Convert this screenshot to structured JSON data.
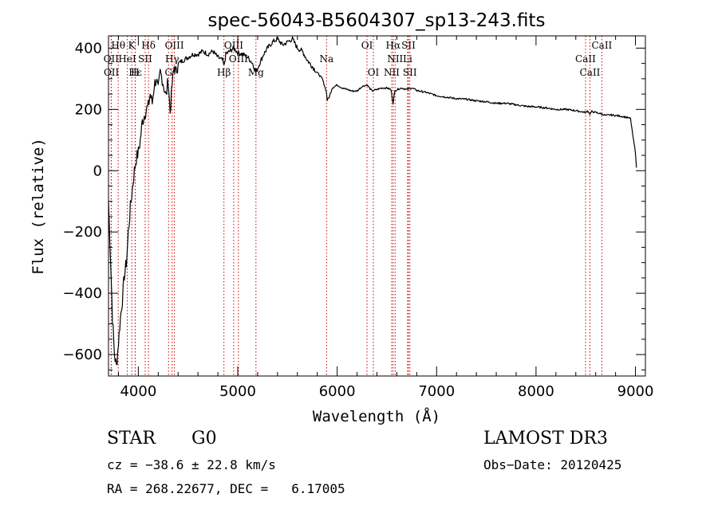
{
  "chart_data": {
    "type": "line",
    "title": "spec-56043-B5604307_sp13-243.fits",
    "xlabel": "Wavelength (Å)",
    "ylabel": "Flux (relative)",
    "xlim": [
      3700,
      9100
    ],
    "ylim": [
      -670,
      440
    ],
    "xticks": [
      4000,
      5000,
      6000,
      7000,
      8000,
      9000
    ],
    "yticks": [
      -600,
      -400,
      -200,
      0,
      200,
      400
    ],
    "series": [
      {
        "name": "spectrum",
        "x": [
          3700,
          3720,
          3740,
          3760,
          3780,
          3800,
          3820,
          3840,
          3860,
          3880,
          3900,
          3920,
          3940,
          3960,
          3980,
          4000,
          4020,
          4040,
          4060,
          4080,
          4100,
          4120,
          4140,
          4160,
          4180,
          4200,
          4220,
          4240,
          4260,
          4280,
          4300,
          4320,
          4340,
          4360,
          4380,
          4400,
          4450,
          4500,
          4550,
          4600,
          4650,
          4700,
          4750,
          4800,
          4850,
          4861,
          4880,
          4920,
          4960,
          5000,
          5050,
          5100,
          5150,
          5183,
          5220,
          5260,
          5300,
          5350,
          5400,
          5450,
          5500,
          5550,
          5600,
          5650,
          5700,
          5750,
          5800,
          5850,
          5890,
          5900,
          5920,
          5950,
          6000,
          6050,
          6100,
          6150,
          6200,
          6250,
          6300,
          6350,
          6400,
          6450,
          6500,
          6540,
          6563,
          6580,
          6600,
          6650,
          6700,
          6750,
          6800,
          6900,
          7000,
          7100,
          7200,
          7300,
          7400,
          7500,
          7600,
          7700,
          7800,
          7900,
          8000,
          8100,
          8200,
          8300,
          8400,
          8498,
          8520,
          8542,
          8560,
          8600,
          8662,
          8700,
          8750,
          8800,
          8850,
          8900,
          8950,
          8980,
          9000,
          9010
        ],
        "y": [
          -100,
          -280,
          -480,
          -600,
          -640,
          -560,
          -480,
          -420,
          -340,
          -300,
          -200,
          -120,
          -60,
          0,
          40,
          60,
          100,
          160,
          180,
          200,
          210,
          250,
          220,
          280,
          300,
          260,
          320,
          300,
          270,
          240,
          300,
          190,
          280,
          340,
          320,
          350,
          360,
          370,
          380,
          380,
          390,
          380,
          390,
          370,
          360,
          340,
          380,
          390,
          400,
          385,
          380,
          370,
          350,
          320,
          350,
          380,
          400,
          420,
          430,
          410,
          420,
          430,
          400,
          390,
          360,
          340,
          320,
          300,
          260,
          230,
          240,
          270,
          280,
          270,
          265,
          260,
          260,
          275,
          280,
          260,
          265,
          270,
          270,
          265,
          220,
          260,
          265,
          270,
          265,
          270,
          262,
          255,
          245,
          240,
          235,
          233,
          228,
          225,
          220,
          220,
          215,
          210,
          208,
          205,
          200,
          200,
          196,
          190,
          195,
          185,
          193,
          190,
          185,
          180,
          182,
          180,
          178,
          175,
          170,
          100,
          60,
          10
        ]
      }
    ],
    "line_color": "#000000",
    "marker_color": "#cc0000",
    "spectral_lines": [
      {
        "label": "Hθ",
        "x": 3798,
        "row": 0
      },
      {
        "label": "K",
        "x": 3934,
        "row": 0
      },
      {
        "label": "Hδ",
        "x": 4102,
        "row": 0
      },
      {
        "label": "OIII",
        "x": 4363,
        "row": 0
      },
      {
        "label": "OIII",
        "x": 4959,
        "row": 0
      },
      {
        "label": "OI",
        "x": 6300,
        "row": 0
      },
      {
        "label": "Hα",
        "x": 6563,
        "row": 0
      },
      {
        "label": "SII",
        "x": 6717,
        "row": 0
      },
      {
        "label": "CaII",
        "x": 8662,
        "row": 0
      },
      {
        "label": "OII",
        "x": 3727,
        "row": 1
      },
      {
        "label": "HeI",
        "x": 3889,
        "row": 1
      },
      {
        "label": "SII",
        "x": 4069,
        "row": 1
      },
      {
        "label": "H",
        "x": 3968,
        "row": 2
      },
      {
        "label": "Hγ",
        "x": 4340,
        "row": 1
      },
      {
        "label": "OIII",
        "x": 5007,
        "row": 1
      },
      {
        "label": "Na",
        "x": 5893,
        "row": 1
      },
      {
        "label": "NII",
        "x": 6583,
        "row": 1
      },
      {
        "label": "Li",
        "x": 6708,
        "row": 1
      },
      {
        "label": "CaII",
        "x": 8498,
        "row": 1
      },
      {
        "label": "OII",
        "x": 3729,
        "row": 2
      },
      {
        "label": "Hε",
        "x": 3970,
        "row": 2
      },
      {
        "label": "G",
        "x": 4304,
        "row": 2
      },
      {
        "label": "Hβ",
        "x": 4861,
        "row": 2
      },
      {
        "label": "Mg",
        "x": 5183,
        "row": 2
      },
      {
        "label": "OI",
        "x": 6364,
        "row": 2
      },
      {
        "label": "NII",
        "x": 6548,
        "row": 2
      },
      {
        "label": "SII",
        "x": 6731,
        "row": 2
      },
      {
        "label": "CaII",
        "x": 8542,
        "row": 2
      }
    ]
  },
  "info": {
    "object_type": "STAR",
    "subclass": "G0",
    "survey": "LAMOST DR3",
    "cz": "cz = −38.6 ± 22.8 km/s",
    "obs_date": "Obs−Date: 20120425",
    "coords": "RA = 268.22677, DEC =   6.17005"
  }
}
